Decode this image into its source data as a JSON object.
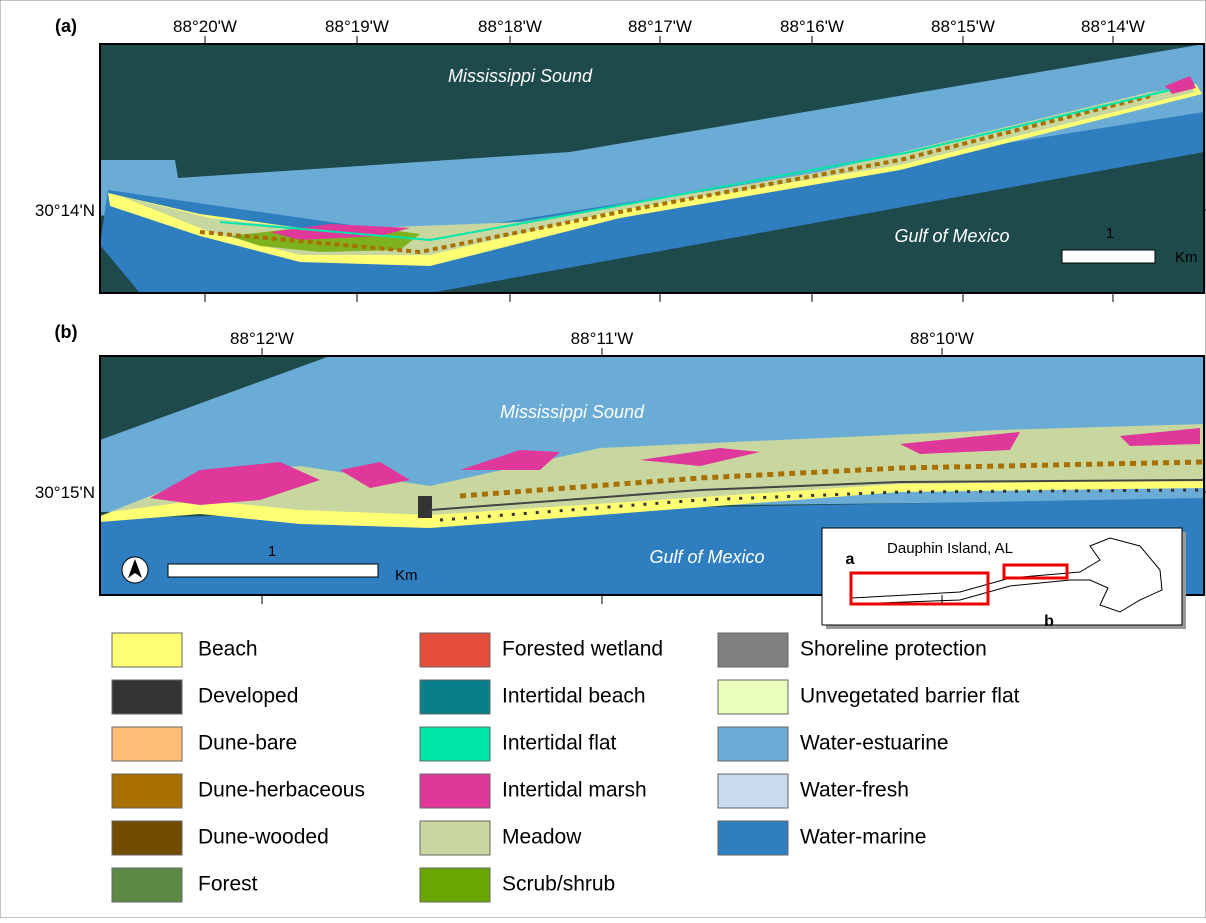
{
  "panel_a": {
    "label": "(a)",
    "lon_ticks": [
      "88°20'W",
      "88°19'W",
      "88°18'W",
      "88°17'W",
      "88°16'W",
      "88°15'W",
      "88°14'W"
    ],
    "lat_ticks": [
      "30°14'N"
    ],
    "places": [
      "Mississippi Sound",
      "Gulf of Mexico"
    ],
    "scale_bar": {
      "distance": "1",
      "unit": "Km"
    }
  },
  "panel_b": {
    "label": "(b)",
    "lon_ticks": [
      "88°12'W",
      "88°11'W",
      "88°10'W"
    ],
    "lat_ticks": [
      "30°15'N"
    ],
    "places": [
      "Mississippi Sound",
      "Gulf of Mexico"
    ],
    "scale_bar": {
      "distance": "1",
      "unit": "Km"
    }
  },
  "inset": {
    "title": "Dauphin Island, AL",
    "labels": [
      "a",
      "b"
    ]
  },
  "legend": [
    {
      "label": "Beach",
      "color": "#ffff73"
    },
    {
      "label": "Developed",
      "color": "#343434"
    },
    {
      "label": "Dune-bare",
      "color": "#ffbe73"
    },
    {
      "label": "Dune-herbaceous",
      "color": "#a87000"
    },
    {
      "label": "Dune-wooded",
      "color": "#734c00"
    },
    {
      "label": "Forest",
      "color": "#5c8944"
    },
    {
      "label": "Forested wetland",
      "color": "#e64c3c"
    },
    {
      "label": "Intertidal beach",
      "color": "#0a7f8c"
    },
    {
      "label": "Intertidal flat",
      "color": "#00e6a9"
    },
    {
      "label": "Intertidal marsh",
      "color": "#e0379b"
    },
    {
      "label": "Meadow",
      "color": "#c8d7a0"
    },
    {
      "label": "Scrub/shrub",
      "color": "#6aa700"
    },
    {
      "label": "Shoreline protection",
      "color": "#808080"
    },
    {
      "label": "Unvegetated barrier flat",
      "color": "#e9ffbe"
    },
    {
      "label": "Water-estuarine",
      "color": "#6aacd6"
    },
    {
      "label": "Water-fresh",
      "color": "#c7daee"
    },
    {
      "label": "Water-marine",
      "color": "#2f7fc0"
    }
  ]
}
